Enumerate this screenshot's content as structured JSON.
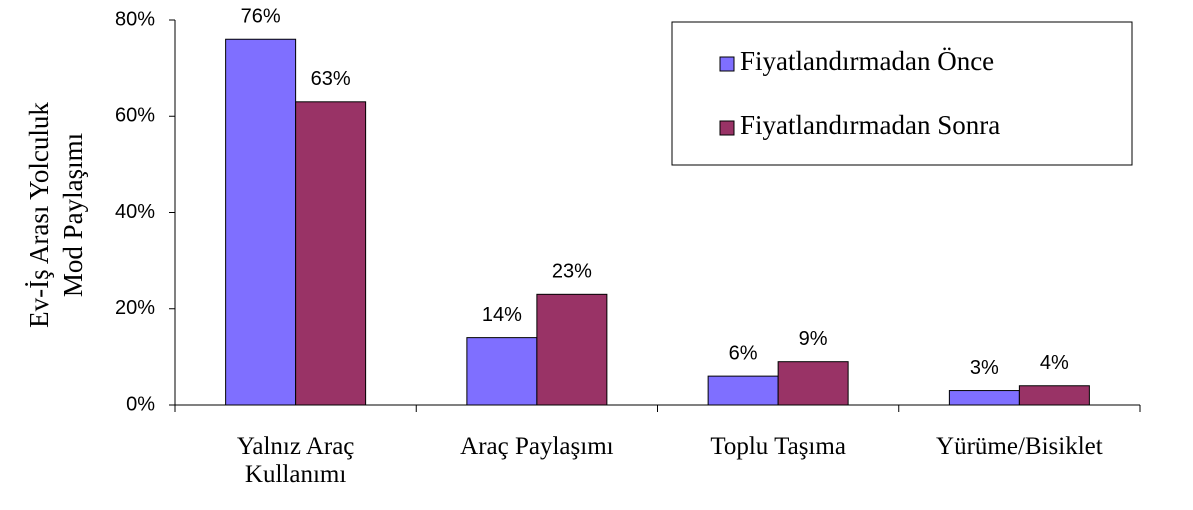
{
  "chart_data": {
    "type": "bar",
    "y_label": [
      "Ev-İş Arası Yolculuk",
      "Mod Paylaşımı"
    ],
    "categories": [
      "Yalnız Araç Kullanımı",
      "Araç Paylaşımı",
      "Toplu Taşıma",
      "Yürüme/Bisiklet"
    ],
    "series": [
      {
        "name": "Fiyatlandırmadan Önce",
        "color": "#7f6fff",
        "values": [
          76,
          14,
          6,
          3
        ],
        "value_labels": [
          "76%",
          "14%",
          "6%",
          "3%"
        ]
      },
      {
        "name": "Fiyatlandırmadan Sonra",
        "color": "#993366",
        "values": [
          63,
          23,
          9,
          4
        ],
        "value_labels": [
          "63%",
          "23%",
          "9%",
          "4%"
        ]
      }
    ],
    "ylim": [
      0,
      80
    ],
    "yticks": [
      {
        "value": 0,
        "label": "0%"
      },
      {
        "value": 20,
        "label": "20%"
      },
      {
        "value": 40,
        "label": "40%"
      },
      {
        "value": 60,
        "label": "60%"
      },
      {
        "value": 80,
        "label": "80%"
      }
    ],
    "legend": "top-right"
  }
}
